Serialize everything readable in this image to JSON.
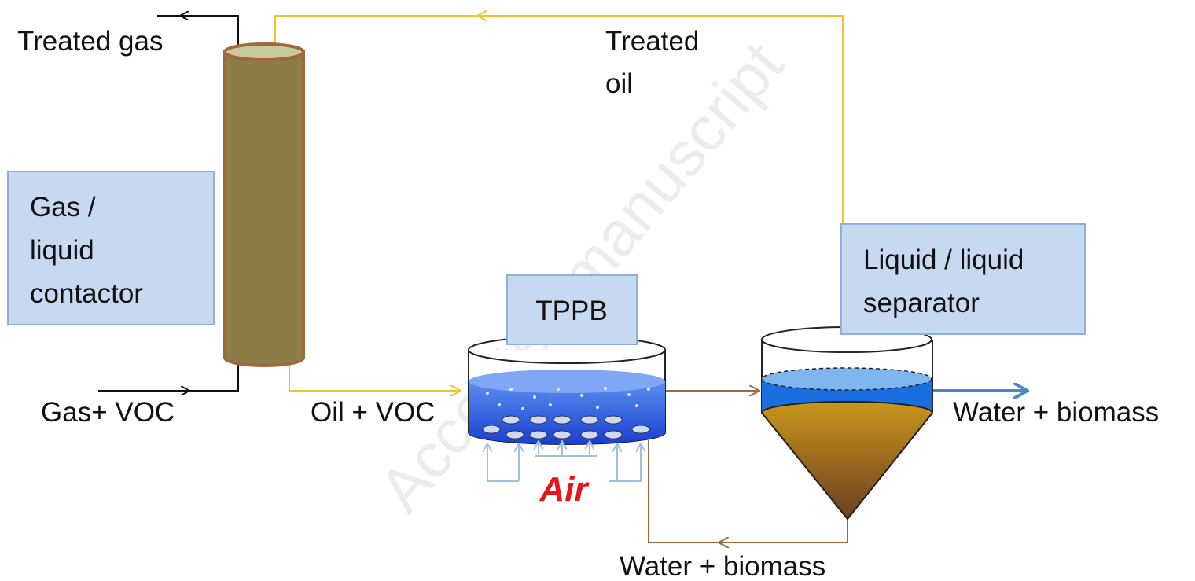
{
  "boxes": [
    {
      "lines": [
        "Gas /",
        "liquid",
        "contactor"
      ]
    },
    {
      "lines": [
        "TPPB"
      ]
    },
    {
      "lines": [
        "Liquid / liquid",
        "separator"
      ]
    }
  ],
  "streams": [
    {
      "lines": [
        "Treated gas"
      ]
    },
    {
      "lines": [
        "Treated",
        "oil"
      ]
    },
    {
      "lines": [
        "Gas+ VOC"
      ]
    },
    {
      "lines": [
        "Oil + VOC"
      ]
    },
    {
      "lines": [
        "Water + biomass"
      ]
    },
    {
      "lines": [
        "Water + biomass"
      ]
    }
  ],
  "air": "Air",
  "watermark": "Accepted manuscript"
}
